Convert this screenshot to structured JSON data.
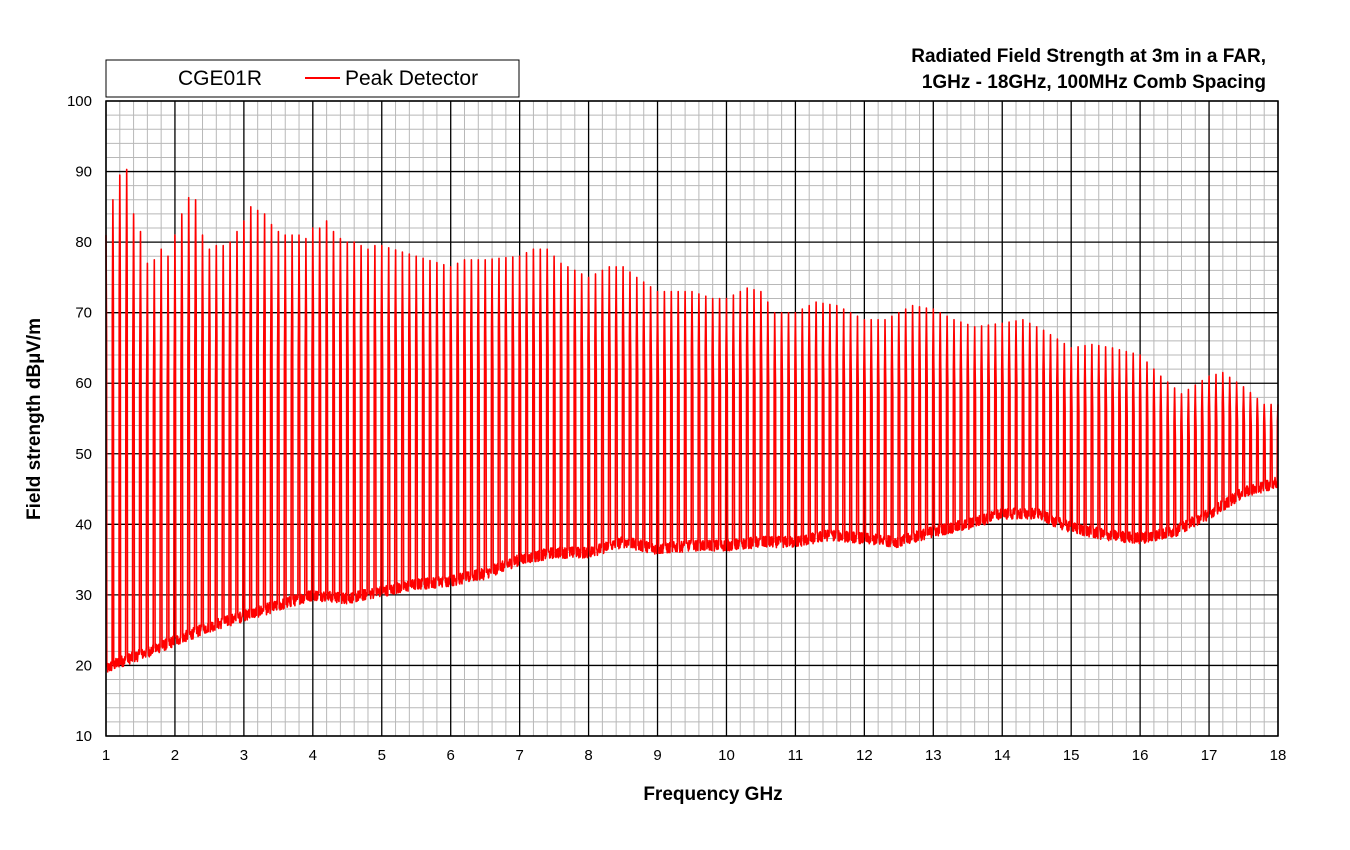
{
  "chart_data": {
    "type": "line",
    "title_lines": [
      "Radiated Field Strength at 3m in a FAR,",
      "1GHz - 18GHz, 100MHz Comb Spacing"
    ],
    "xlabel": "Frequency GHz",
    "ylabel": "Field strength dBµV/m",
    "xlim": [
      1,
      18
    ],
    "ylim": [
      10,
      100
    ],
    "x_ticks": [
      1,
      2,
      3,
      4,
      5,
      6,
      7,
      8,
      9,
      10,
      11,
      12,
      13,
      14,
      15,
      16,
      17,
      18
    ],
    "y_ticks": [
      10,
      20,
      30,
      40,
      50,
      60,
      70,
      80,
      90,
      100
    ],
    "x_tick_labels": [
      "1",
      "2",
      "3",
      "4",
      "5",
      "6",
      "7",
      "8",
      "9",
      "10",
      "11",
      "12",
      "13",
      "14",
      "15",
      "16",
      "17",
      "18"
    ],
    "y_tick_labels": [
      "10",
      "20",
      "30",
      "40",
      "50",
      "60",
      "70",
      "80",
      "90",
      "100"
    ],
    "grid": true,
    "legend": {
      "position": "top-left",
      "device": "CGE01R",
      "entries": [
        {
          "label": "Peak Detector",
          "color": "#ff0000"
        }
      ]
    },
    "series": [
      {
        "name": "Peak Detector",
        "color": "#ff0000",
        "comb_spacing_ghz": 0.1,
        "peak_envelope": {
          "x": [
            1.0,
            1.1,
            1.2,
            1.3,
            1.4,
            1.5,
            1.6,
            1.7,
            1.8,
            1.9,
            2.0,
            2.1,
            2.2,
            2.3,
            2.4,
            2.5,
            2.6,
            2.7,
            2.8,
            2.9,
            3.0,
            3.1,
            3.2,
            3.3,
            3.4,
            3.5,
            3.6,
            3.7,
            3.8,
            3.9,
            4.0,
            4.1,
            4.2,
            4.3,
            4.4,
            4.5,
            4.6,
            4.7,
            4.8,
            4.9,
            5.0,
            5.5,
            6.0,
            6.2,
            6.5,
            7.0,
            7.2,
            7.4,
            7.6,
            8.0,
            8.3,
            8.5,
            8.7,
            9.0,
            9.2,
            9.5,
            9.8,
            10.0,
            10.3,
            10.5,
            10.7,
            11.0,
            11.3,
            11.6,
            12.0,
            12.3,
            12.7,
            13.0,
            13.3,
            13.6,
            14.0,
            14.3,
            14.6,
            15.0,
            15.3,
            15.6,
            16.0,
            16.3,
            16.6,
            17.0,
            17.2,
            17.5,
            17.8,
            18.0
          ],
          "y": [
            81,
            86,
            89.5,
            90.3,
            84,
            81.5,
            77,
            77.5,
            79,
            78,
            81,
            84,
            86.3,
            86,
            81,
            79,
            79.5,
            79.5,
            80,
            81.5,
            83,
            85,
            84.5,
            84,
            82.5,
            81.5,
            81,
            81,
            81,
            80.5,
            82,
            82,
            83,
            81.5,
            80.5,
            80,
            80,
            79.5,
            79,
            79.5,
            79.5,
            78,
            76.5,
            77.5,
            77.5,
            78,
            79,
            79,
            77,
            75,
            76.5,
            76.5,
            75,
            73,
            73,
            73,
            72,
            72,
            73.5,
            73,
            70,
            70,
            71.5,
            71,
            69,
            69,
            71,
            70.5,
            69,
            68,
            68.5,
            69,
            67.5,
            65,
            65.5,
            65,
            64,
            61,
            58.5,
            61,
            61.5,
            59.5,
            57,
            57
          ]
        },
        "noise_floor": {
          "x": [
            1.0,
            1.2,
            1.5,
            2.0,
            2.5,
            3.0,
            3.5,
            4.0,
            4.5,
            5.0,
            5.5,
            6.0,
            6.5,
            7.0,
            7.5,
            8.0,
            8.5,
            9.0,
            9.5,
            10.0,
            10.5,
            11.0,
            11.5,
            12.0,
            12.5,
            13.0,
            13.5,
            14.0,
            14.5,
            15.0,
            15.5,
            16.0,
            16.5,
            17.0,
            17.5,
            18.0
          ],
          "y": [
            19.5,
            20.5,
            21.5,
            23.5,
            25.5,
            27,
            28.5,
            30,
            29.5,
            30.5,
            31.5,
            32,
            33,
            35,
            36,
            36,
            37.5,
            36.5,
            37,
            37,
            37.5,
            37.5,
            38.5,
            38,
            37.5,
            39,
            40,
            41.5,
            41.5,
            39.5,
            38.5,
            38,
            39,
            41.5,
            44.5,
            46
          ]
        }
      }
    ]
  }
}
